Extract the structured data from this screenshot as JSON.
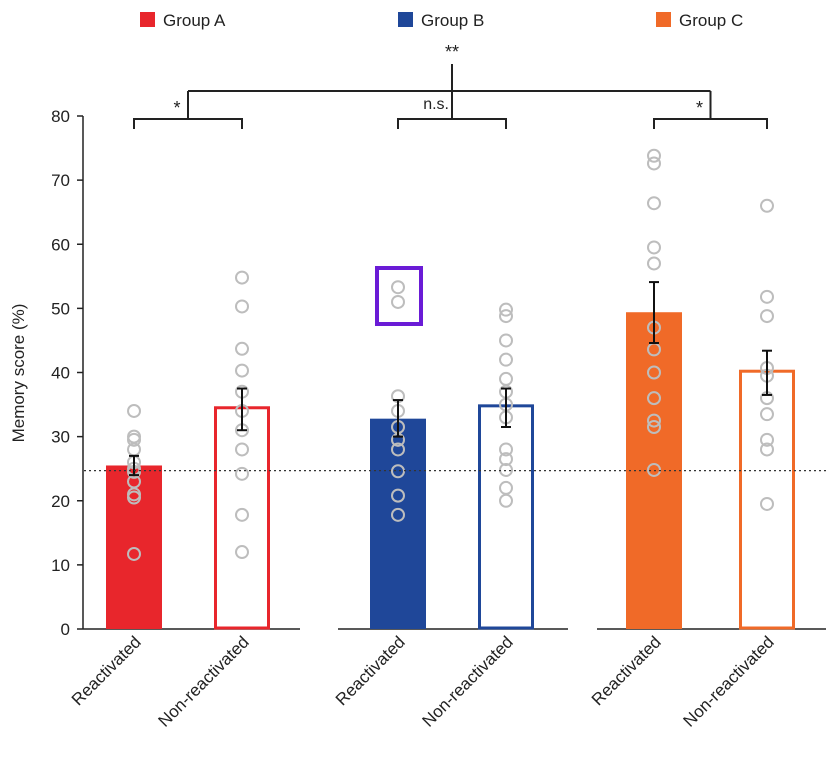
{
  "chart_data": {
    "type": "bar",
    "title": "",
    "xlabel": "",
    "ylabel": "Memory score (%)",
    "ylim": [
      0,
      80
    ],
    "yticks": [
      0,
      10,
      20,
      30,
      40,
      50,
      60,
      70,
      80
    ],
    "chance_level": 24.7,
    "legend": [
      {
        "name": "Group A",
        "color": "#e8262c"
      },
      {
        "name": "Group B",
        "color": "#1f4799"
      },
      {
        "name": "Group C",
        "color": "#f06a28"
      }
    ],
    "groups": [
      {
        "name": "Group A",
        "color": "#e8262c",
        "bars": [
          {
            "label": "Reactivated",
            "filled": true,
            "mean": 25.5,
            "sem_low": 24.0,
            "sem_high": 27.0,
            "points": [
              34.0,
              30.0,
              29.5,
              28.0,
              26.0,
              25.0,
              24.5,
              23.0,
              21.0,
              20.5,
              11.7
            ]
          },
          {
            "label": "Non-reactivated",
            "filled": false,
            "mean": 34.5,
            "sem_low": 31.0,
            "sem_high": 37.5,
            "points": [
              54.8,
              50.3,
              43.7,
              40.3,
              37.0,
              34.0,
              31.0,
              28.0,
              24.2,
              17.8,
              12.0
            ]
          }
        ],
        "significance": "*"
      },
      {
        "name": "Group B",
        "color": "#1f4799",
        "bars": [
          {
            "label": "Reactivated",
            "filled": true,
            "mean": 32.8,
            "sem_low": 30.0,
            "sem_high": 35.7,
            "points": [
              53.3,
              51.0,
              36.3,
              34.0,
              31.5,
              29.5,
              28.0,
              24.6,
              20.8,
              17.8
            ]
          },
          {
            "label": "Non-reactivated",
            "filled": false,
            "mean": 34.8,
            "sem_low": 31.5,
            "sem_high": 37.5,
            "points": [
              49.8,
              48.8,
              45.0,
              42.0,
              39.0,
              37.0,
              35.0,
              33.0,
              28.0,
              26.5,
              24.8,
              22.0,
              20.0
            ]
          }
        ],
        "significance": "n.s."
      },
      {
        "name": "Group C",
        "color": "#f06a28",
        "bars": [
          {
            "label": "Reactivated",
            "filled": true,
            "mean": 49.4,
            "sem_low": 44.6,
            "sem_high": 54.1,
            "points": [
              73.8,
              72.6,
              66.4,
              59.5,
              57.0,
              47.0,
              43.6,
              40.0,
              36.0,
              32.5,
              31.5,
              24.8
            ]
          },
          {
            "label": "Non-reactivated",
            "filled": false,
            "mean": 40.2,
            "sem_low": 36.5,
            "sem_high": 43.4,
            "points": [
              66.0,
              51.8,
              48.8,
              40.7,
              39.5,
              36.0,
              33.5,
              29.5,
              28.0,
              19.5
            ]
          }
        ],
        "significance": "*"
      }
    ],
    "overall_significance": "**"
  }
}
